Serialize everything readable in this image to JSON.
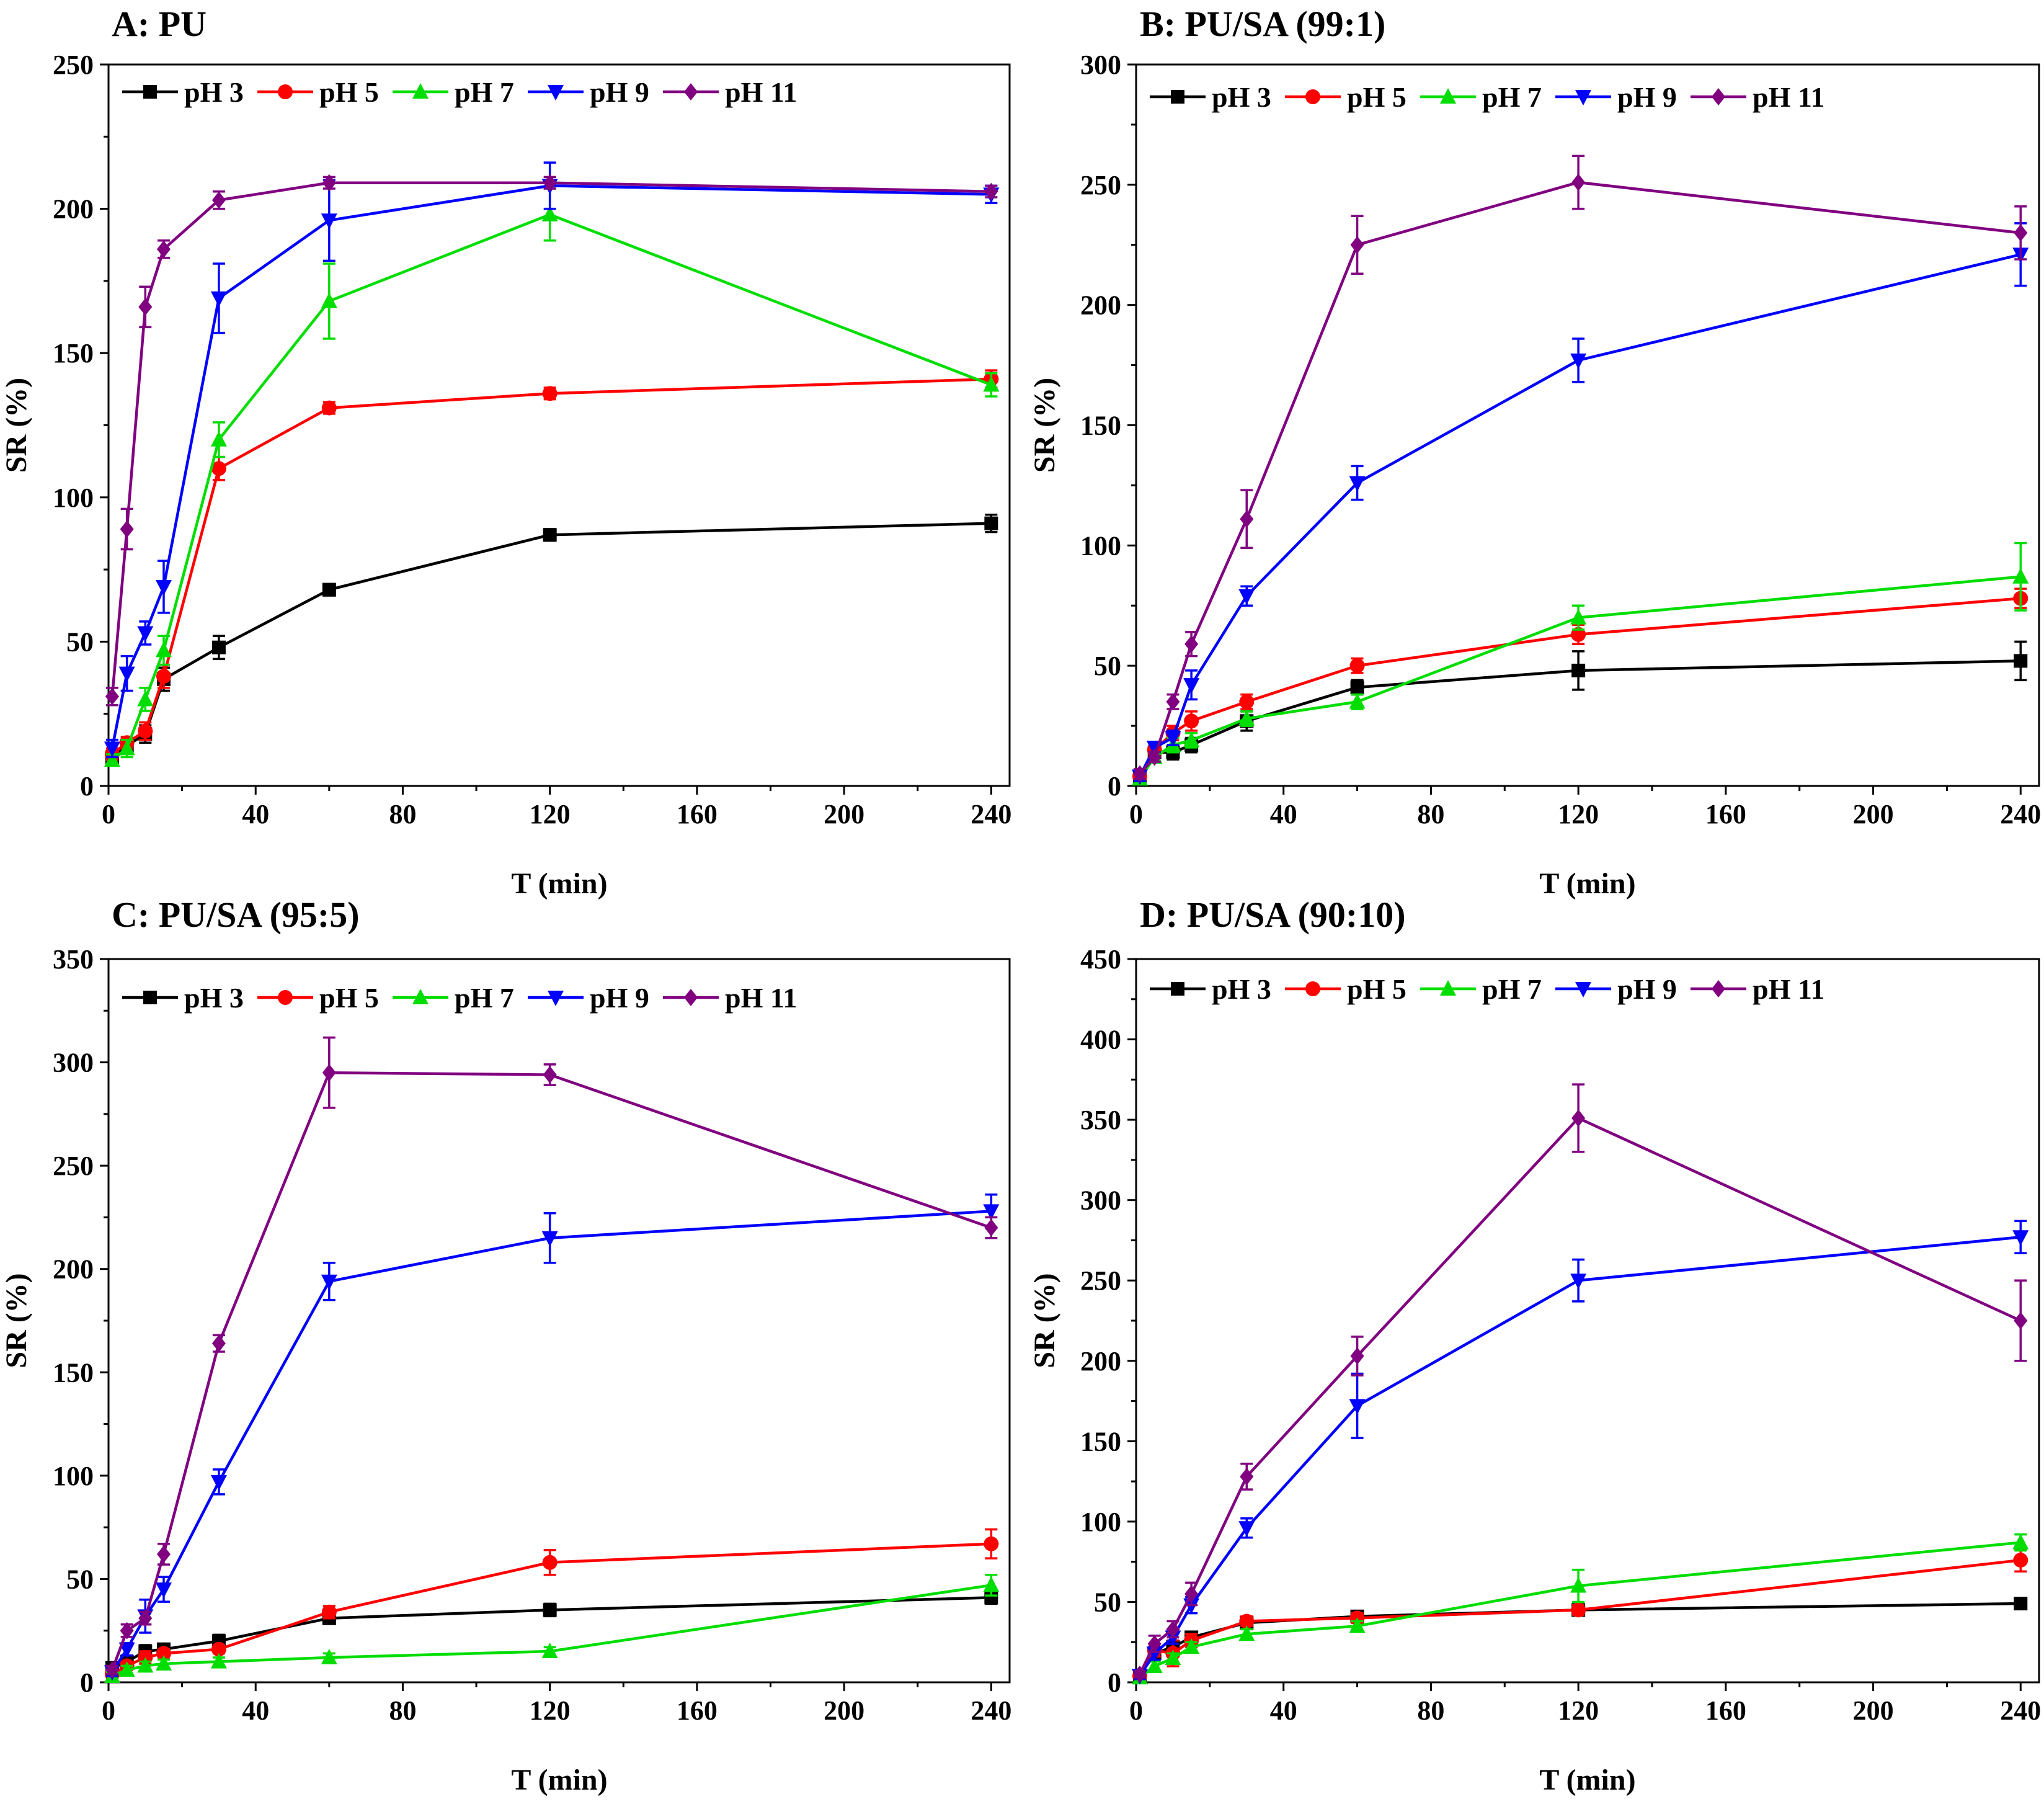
{
  "chart_data": [
    {
      "type": "line",
      "title": "A: PU",
      "xlabel": "T (min)",
      "ylabel": "SR (%)",
      "xlim": [
        0,
        245
      ],
      "ylim": [
        0,
        250
      ],
      "xticks": [
        0,
        40,
        80,
        120,
        160,
        200,
        240
      ],
      "yticks": [
        0,
        50,
        100,
        150,
        200,
        250
      ],
      "legend_position": "top-left",
      "x": [
        1,
        5,
        10,
        15,
        30,
        60,
        120,
        240
      ],
      "series": [
        {
          "name": "pH 3",
          "color": "#000000",
          "marker": "square",
          "values": [
            10,
            14,
            18,
            37,
            48,
            68,
            87,
            91
          ],
          "errors": [
            2,
            2,
            3,
            4,
            4,
            2,
            2,
            3
          ]
        },
        {
          "name": "pH 5",
          "color": "#ff0000",
          "marker": "circle",
          "values": [
            11,
            15,
            19,
            38,
            110,
            131,
            136,
            141
          ],
          "errors": [
            2,
            2,
            3,
            4,
            4,
            2,
            2,
            3
          ]
        },
        {
          "name": "pH 7",
          "color": "#00dd00",
          "marker": "triangle-up",
          "values": [
            9,
            13,
            30,
            47,
            120,
            168,
            198,
            139
          ],
          "errors": [
            2,
            3,
            4,
            5,
            6,
            13,
            9,
            4
          ]
        },
        {
          "name": "pH 9",
          "color": "#0000ff",
          "marker": "triangle-down",
          "values": [
            13,
            39,
            53,
            69,
            169,
            196,
            208,
            205
          ],
          "errors": [
            3,
            6,
            4,
            9,
            12,
            14,
            8,
            3
          ]
        },
        {
          "name": "pH 11",
          "color": "#800080",
          "marker": "diamond",
          "values": [
            31,
            89,
            166,
            186,
            203,
            209,
            209,
            206
          ],
          "errors": [
            3,
            7,
            7,
            3,
            3,
            2,
            2,
            2
          ]
        }
      ]
    },
    {
      "type": "line",
      "title": "B: PU/SA (99:1)",
      "xlabel": "T (min)",
      "ylabel": "SR (%)",
      "xlim": [
        0,
        245
      ],
      "ylim": [
        0,
        300
      ],
      "xticks": [
        0,
        40,
        80,
        120,
        160,
        200,
        240
      ],
      "yticks": [
        0,
        50,
        100,
        150,
        200,
        250,
        300
      ],
      "legend_position": "top-left",
      "x": [
        1,
        5,
        10,
        15,
        30,
        60,
        120,
        240
      ],
      "series": [
        {
          "name": "pH 3",
          "color": "#000000",
          "marker": "square",
          "values": [
            3,
            14,
            14,
            17,
            27,
            41,
            48,
            52
          ],
          "errors": [
            2,
            2,
            3,
            3,
            4,
            3,
            8,
            8
          ]
        },
        {
          "name": "pH 5",
          "color": "#ff0000",
          "marker": "circle",
          "values": [
            4,
            15,
            22,
            27,
            35,
            50,
            63,
            78
          ],
          "errors": [
            2,
            2,
            3,
            4,
            3,
            3,
            4,
            4
          ]
        },
        {
          "name": "pH 7",
          "color": "#00dd00",
          "marker": "triangle-up",
          "values": [
            3,
            12,
            17,
            19,
            28,
            35,
            70,
            87
          ],
          "errors": [
            2,
            2,
            3,
            3,
            3,
            3,
            5,
            14
          ]
        },
        {
          "name": "pH 9",
          "color": "#0000ff",
          "marker": "triangle-down",
          "values": [
            4,
            16,
            20,
            42,
            79,
            126,
            177,
            221
          ],
          "errors": [
            2,
            2,
            3,
            6,
            4,
            7,
            9,
            13
          ]
        },
        {
          "name": "pH 11",
          "color": "#800080",
          "marker": "diamond",
          "values": [
            5,
            12,
            35,
            59,
            111,
            225,
            251,
            230
          ],
          "errors": [
            2,
            2,
            3,
            5,
            12,
            12,
            11,
            11
          ]
        }
      ]
    },
    {
      "type": "line",
      "title": "C: PU/SA (95:5)",
      "xlabel": "T (min)",
      "ylabel": "SR (%)",
      "xlim": [
        0,
        245
      ],
      "ylim": [
        0,
        350
      ],
      "xticks": [
        0,
        40,
        80,
        120,
        160,
        200,
        240
      ],
      "yticks": [
        0,
        50,
        100,
        150,
        200,
        250,
        300,
        350
      ],
      "legend_position": "top-left",
      "x": [
        1,
        5,
        10,
        15,
        30,
        60,
        120,
        240
      ],
      "series": [
        {
          "name": "pH 3",
          "color": "#000000",
          "marker": "square",
          "values": [
            7,
            10,
            15,
            16,
            20,
            31,
            35,
            41
          ],
          "errors": [
            2,
            2,
            3,
            2,
            3,
            2,
            3,
            3
          ]
        },
        {
          "name": "pH 5",
          "color": "#ff0000",
          "marker": "circle",
          "values": [
            4,
            8,
            12,
            14,
            16,
            34,
            58,
            67
          ],
          "errors": [
            2,
            2,
            3,
            2,
            2,
            3,
            6,
            7
          ]
        },
        {
          "name": "pH 7",
          "color": "#00dd00",
          "marker": "triangle-up",
          "values": [
            3,
            6,
            8,
            9,
            10,
            12,
            15,
            47
          ],
          "errors": [
            2,
            2,
            2,
            2,
            2,
            2,
            2,
            5
          ]
        },
        {
          "name": "pH 9",
          "color": "#0000ff",
          "marker": "triangle-down",
          "values": [
            5,
            16,
            32,
            45,
            97,
            194,
            215,
            228
          ],
          "errors": [
            2,
            3,
            8,
            6,
            6,
            9,
            12,
            8
          ]
        },
        {
          "name": "pH 11",
          "color": "#800080",
          "marker": "diamond",
          "values": [
            6,
            25,
            31,
            62,
            164,
            295,
            294,
            220
          ],
          "errors": [
            2,
            3,
            3,
            5,
            4,
            17,
            5,
            5
          ]
        }
      ]
    },
    {
      "type": "line",
      "title": "D: PU/SA (90:10)",
      "xlabel": "T (min)",
      "ylabel": "SR (%)",
      "xlim": [
        0,
        245
      ],
      "ylim": [
        0,
        450
      ],
      "xticks": [
        0,
        40,
        80,
        120,
        160,
        200,
        240
      ],
      "yticks": [
        0,
        50,
        100,
        150,
        200,
        250,
        300,
        350,
        400,
        450
      ],
      "legend_position": "top-left",
      "x": [
        1,
        5,
        10,
        15,
        30,
        60,
        120,
        240
      ],
      "series": [
        {
          "name": "pH 3",
          "color": "#000000",
          "marker": "square",
          "values": [
            4,
            18,
            22,
            28,
            37,
            41,
            45,
            49
          ],
          "errors": [
            2,
            3,
            4,
            3,
            3,
            3,
            3,
            3
          ]
        },
        {
          "name": "pH 5",
          "color": "#ff0000",
          "marker": "circle",
          "values": [
            4,
            20,
            18,
            26,
            38,
            40,
            45,
            76
          ],
          "errors": [
            2,
            4,
            8,
            4,
            3,
            3,
            3,
            7
          ]
        },
        {
          "name": "pH 7",
          "color": "#00dd00",
          "marker": "triangle-up",
          "values": [
            3,
            10,
            15,
            22,
            30,
            35,
            60,
            87
          ],
          "errors": [
            2,
            3,
            3,
            3,
            3,
            3,
            10,
            5
          ]
        },
        {
          "name": "pH 9",
          "color": "#0000ff",
          "marker": "triangle-down",
          "values": [
            4,
            18,
            28,
            48,
            96,
            172,
            250,
            277
          ],
          "errors": [
            2,
            4,
            4,
            5,
            6,
            20,
            13,
            10
          ]
        },
        {
          "name": "pH 11",
          "color": "#800080",
          "marker": "diamond",
          "values": [
            5,
            24,
            33,
            55,
            128,
            203,
            351,
            225
          ],
          "errors": [
            2,
            5,
            5,
            7,
            8,
            12,
            21,
            25
          ]
        }
      ]
    }
  ]
}
